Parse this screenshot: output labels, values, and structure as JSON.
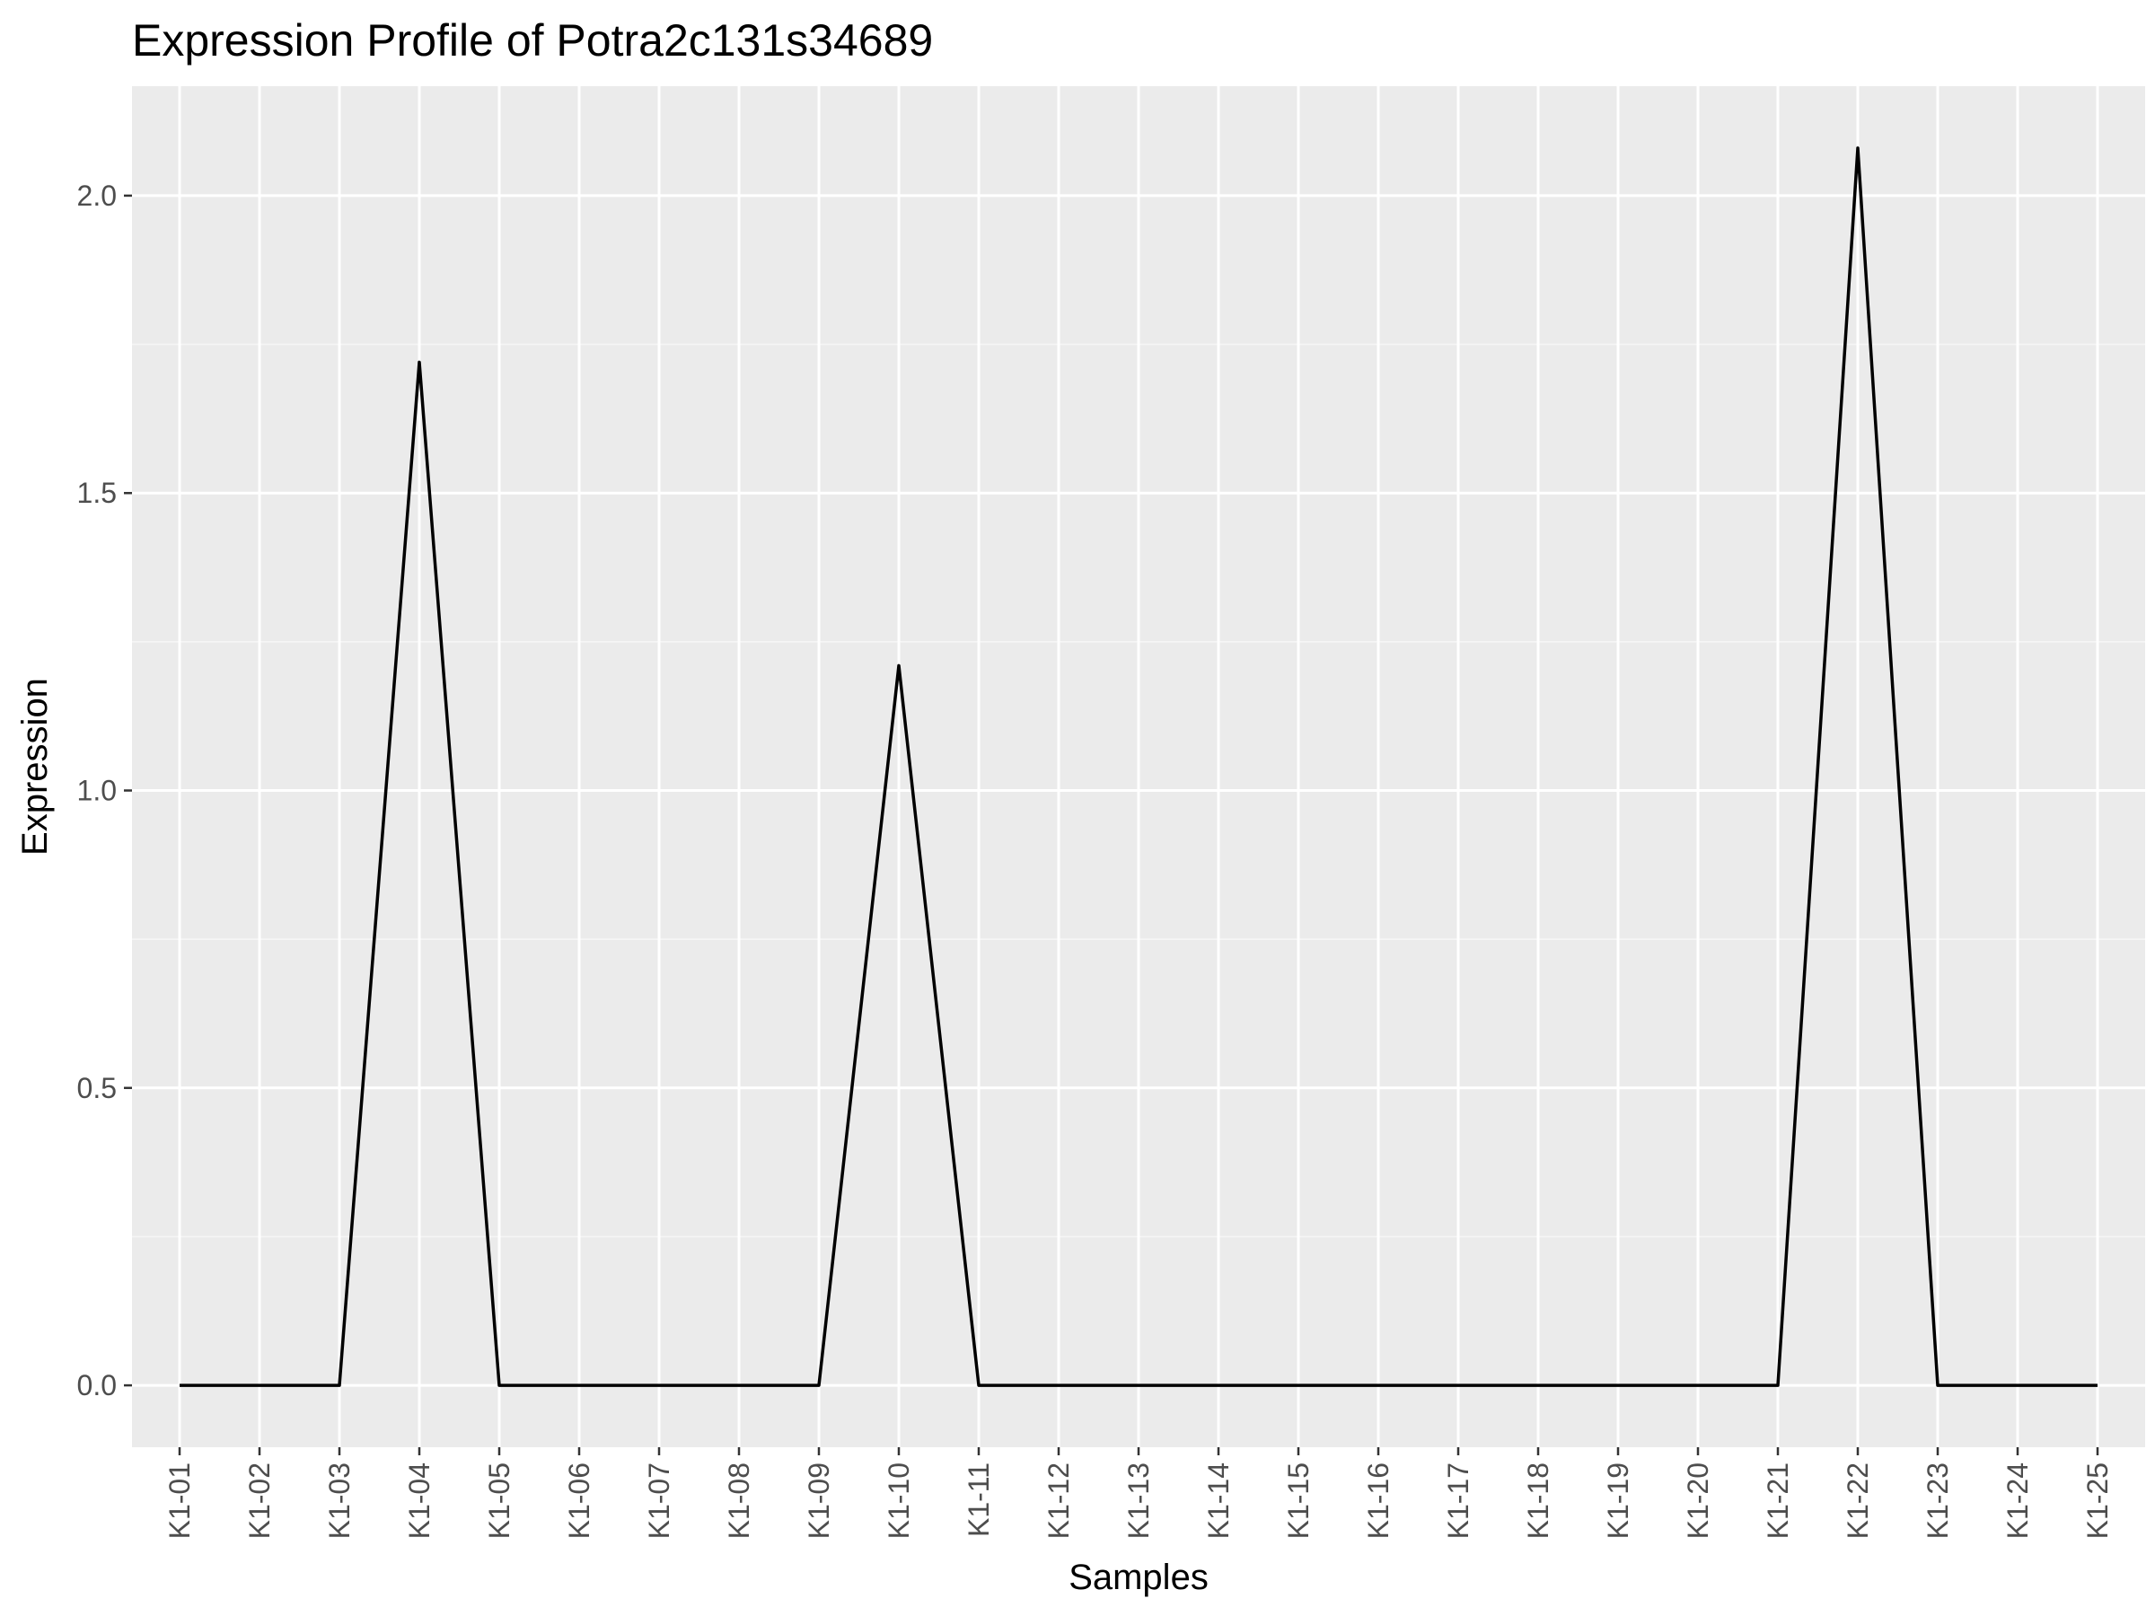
{
  "chart_data": {
    "type": "line",
    "title": "Expression Profile of Potra2c131s34689",
    "xlabel": "Samples",
    "ylabel": "Expression",
    "categories": [
      "K1-01",
      "K1-02",
      "K1-03",
      "K1-04",
      "K1-05",
      "K1-06",
      "K1-07",
      "K1-08",
      "K1-09",
      "K1-10",
      "K1-11",
      "K1-12",
      "K1-13",
      "K1-14",
      "K1-15",
      "K1-16",
      "K1-17",
      "K1-18",
      "K1-19",
      "K1-20",
      "K1-21",
      "K1-22",
      "K1-23",
      "K1-24",
      "K1-25"
    ],
    "series": [
      {
        "values": [
          0,
          0,
          0,
          1.72,
          0,
          0,
          0,
          0,
          0,
          1.21,
          0,
          0,
          0,
          0,
          0,
          0,
          0,
          0,
          0,
          0,
          0,
          2.08,
          0,
          0,
          0
        ]
      }
    ],
    "ylim": [
      -0.104,
      2.184
    ],
    "yticks": [
      0.0,
      0.5,
      1.0,
      1.5,
      2.0
    ],
    "ytick_labels": [
      "0.0",
      "0.5",
      "1.0",
      "1.5",
      "2.0"
    ],
    "grid": true,
    "legend": "none",
    "colors": {
      "panel_bg": "#ebebeb",
      "grid_major": "#ffffff",
      "grid_minor": "#f5f5f5",
      "line": "#000000",
      "tick": "#333333"
    }
  }
}
